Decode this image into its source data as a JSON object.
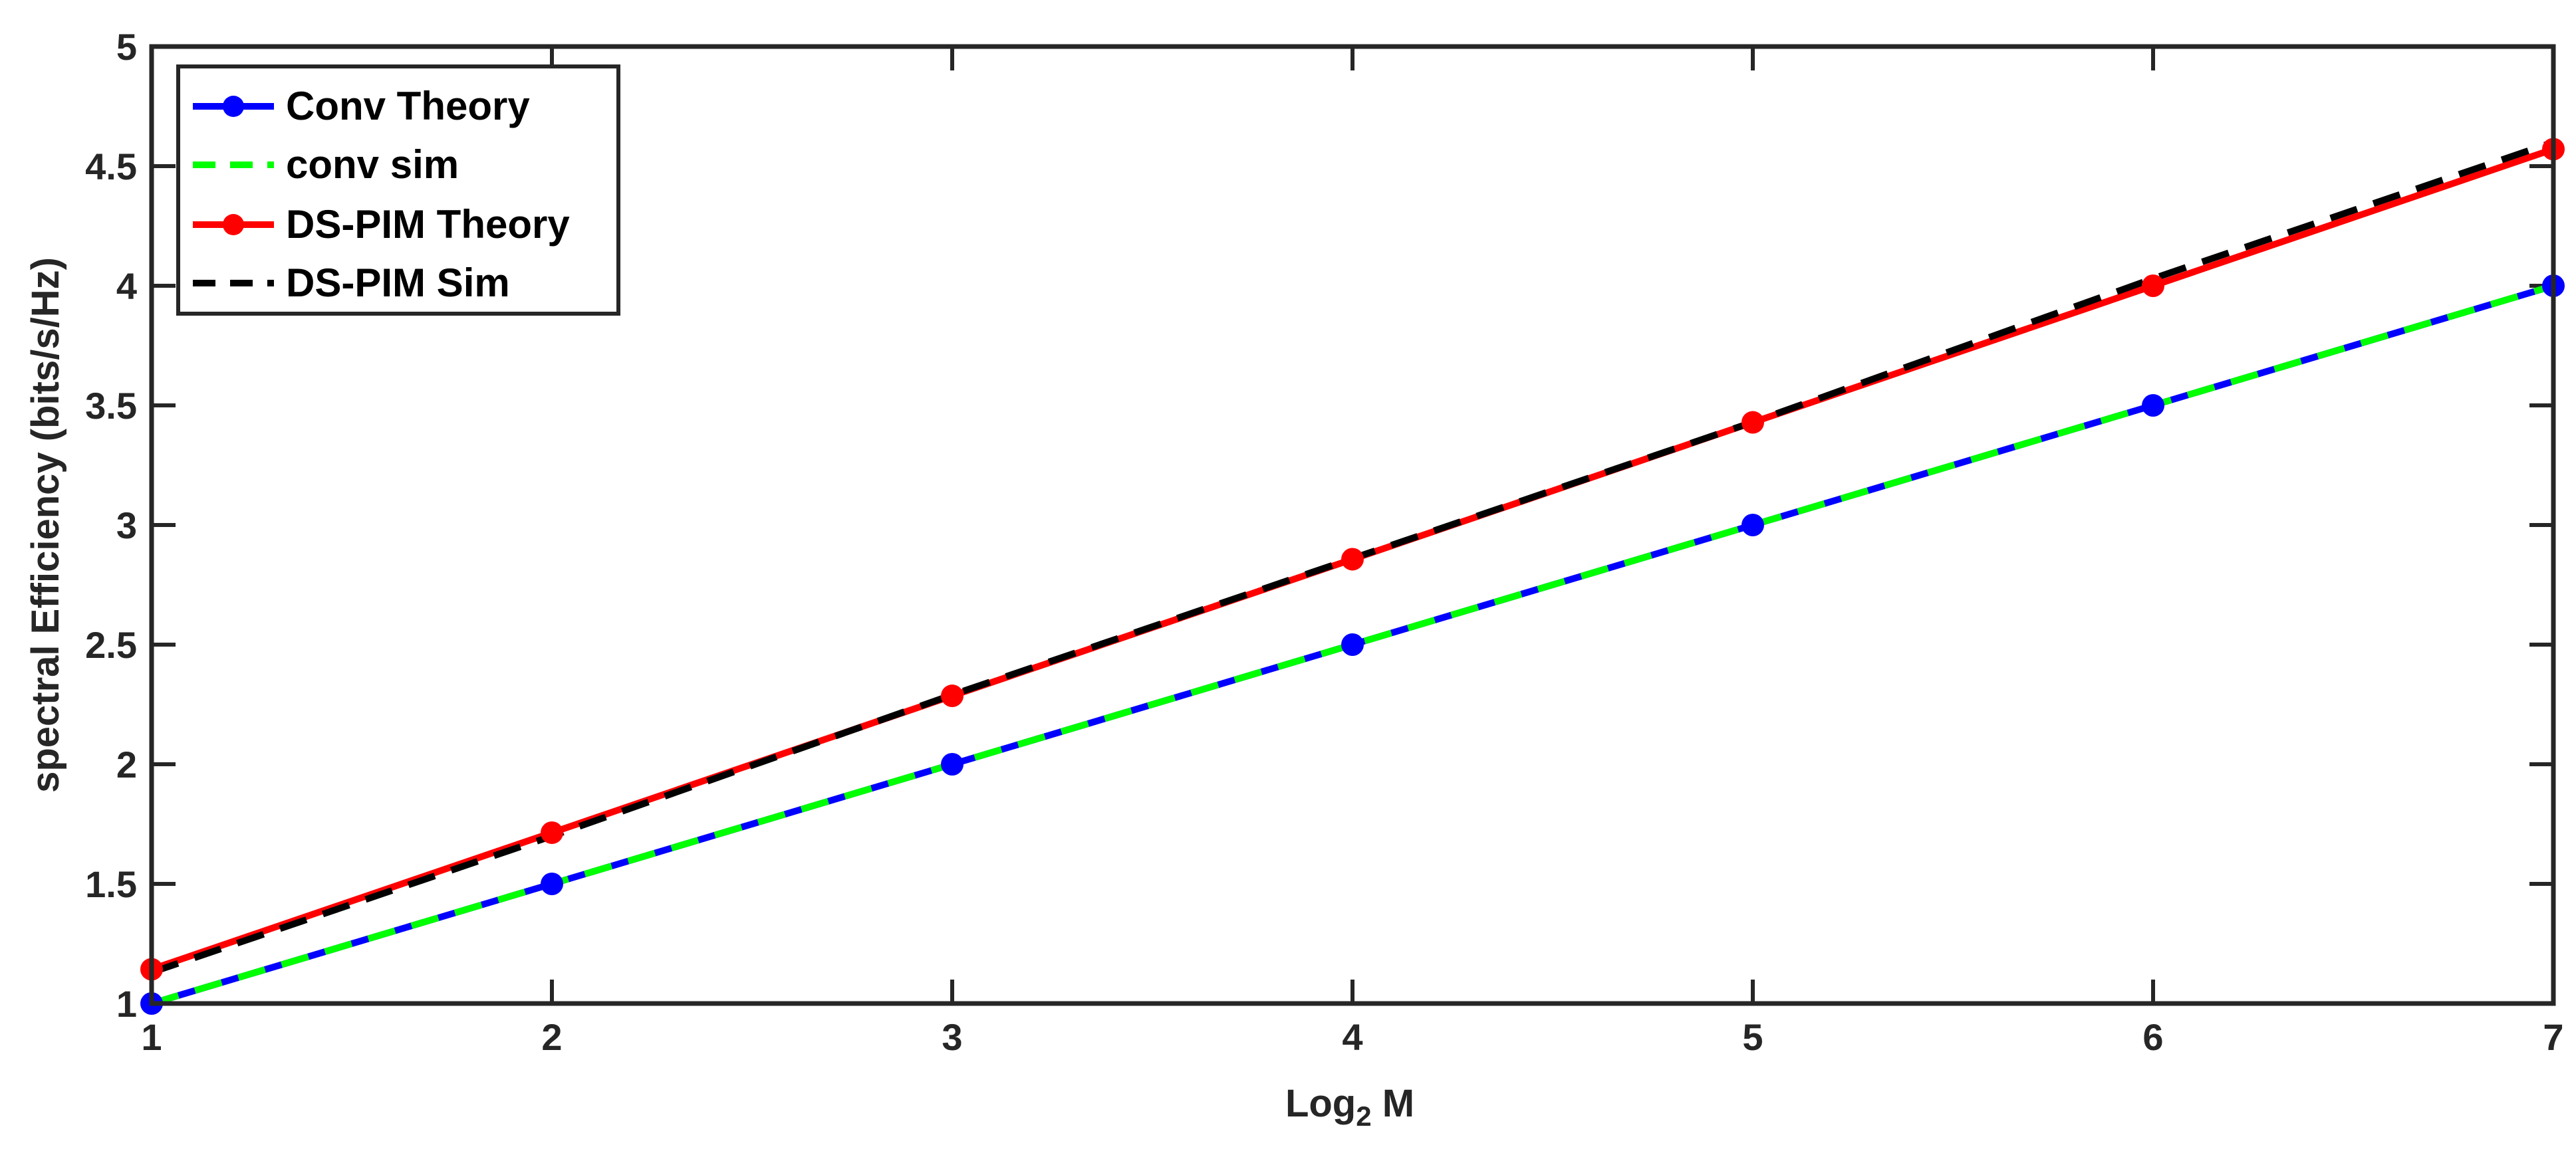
{
  "chart_data": {
    "type": "line",
    "title": "",
    "xlabel_main": "Log",
    "xlabel_sub": "2",
    "xlabel_tail": " M",
    "ylabel": "spectral Efficiency (bits/s/Hz)",
    "xlim": [
      1,
      7
    ],
    "ylim": [
      1,
      5
    ],
    "xticks": [
      1,
      2,
      3,
      4,
      5,
      6,
      7
    ],
    "yticks": [
      1,
      1.5,
      2,
      2.5,
      3,
      3.5,
      4,
      4.5,
      5
    ],
    "ytick_labels": [
      "1",
      "1.5",
      "2",
      "2.5",
      "3",
      "3.5",
      "4",
      "4.5",
      "5"
    ],
    "grid": false,
    "legend_position": "top-left",
    "x": [
      1,
      2,
      3,
      4,
      5,
      6,
      7
    ],
    "series": [
      {
        "name": "Conv Theory",
        "color": "#0000ff",
        "style": "solid",
        "marker": "circle",
        "values": [
          1.0,
          1.5,
          2.0,
          2.5,
          3.0,
          3.5,
          4.0
        ]
      },
      {
        "name": "conv sim",
        "color": "#00ff00",
        "style": "dashed",
        "marker": "none",
        "values": [
          1.0,
          1.5,
          2.0,
          2.5,
          3.0,
          3.5,
          4.0
        ]
      },
      {
        "name": "DS-PIM Theory",
        "color": "#ff0000",
        "style": "solid",
        "marker": "circle",
        "values": [
          1.143,
          1.714,
          2.286,
          2.857,
          3.429,
          4.0,
          4.571
        ]
      },
      {
        "name": "DS-PIM Sim",
        "color": "#000000",
        "style": "dashed",
        "marker": "none",
        "values": [
          1.13,
          1.7,
          2.29,
          2.86,
          3.43,
          4.03,
          4.6
        ]
      }
    ]
  }
}
